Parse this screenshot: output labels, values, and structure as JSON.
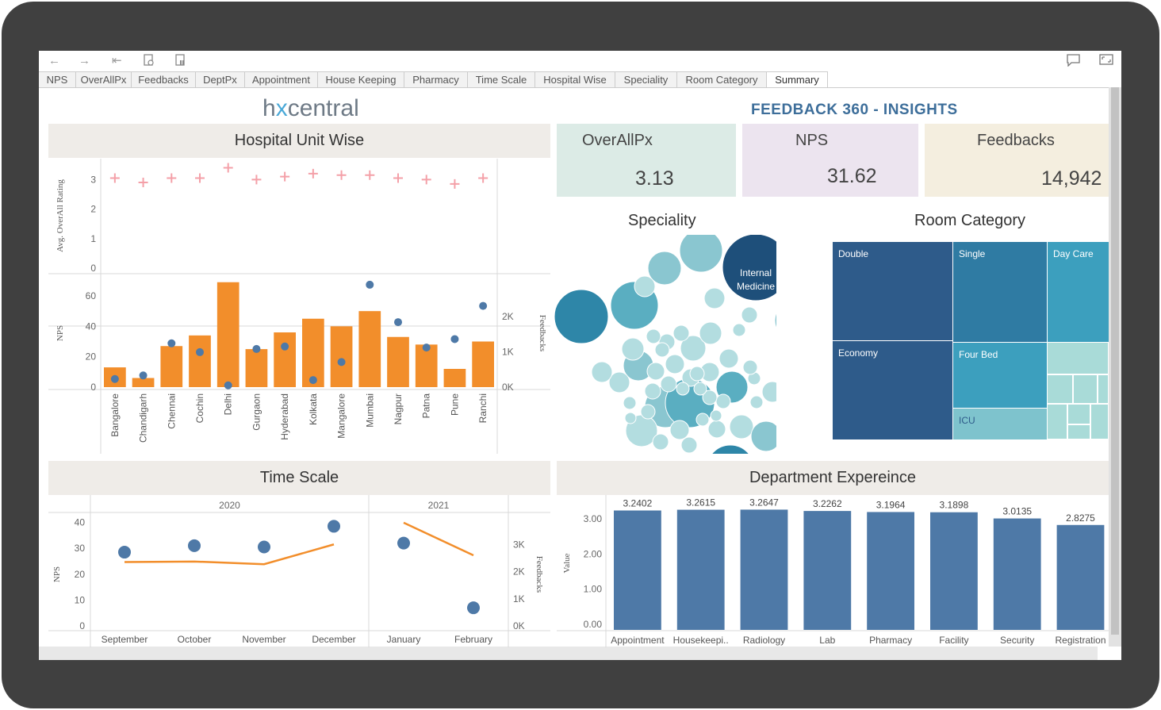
{
  "toolbar": {
    "back_icon": "back-arrow-icon",
    "forward_icon": "forward-arrow-icon",
    "first_icon": "skip-first-icon",
    "refresh_icon": "refresh-icon",
    "pause_icon": "pause-icon",
    "comment_icon": "comment-icon",
    "fullscreen_icon": "fullscreen-icon"
  },
  "tabs": [
    {
      "label": "NPS"
    },
    {
      "label": "OverAllPx"
    },
    {
      "label": "Feedbacks"
    },
    {
      "label": "DeptPx"
    },
    {
      "label": "Appointment"
    },
    {
      "label": "House Keeping"
    },
    {
      "label": "Pharmacy"
    },
    {
      "label": "Time Scale"
    },
    {
      "label": "Hospital Wise"
    },
    {
      "label": "Speciality"
    },
    {
      "label": "Room Category"
    },
    {
      "label": "Summary"
    }
  ],
  "active_tab": "Summary",
  "logo": {
    "part1": "h",
    "part2": "x",
    "part3": "central"
  },
  "dashboard_title": "FEEDBACK 360 - INSIGHTS",
  "kpis": [
    {
      "label": "OverAllPx",
      "value": "3.13",
      "color": "#dcebe6"
    },
    {
      "label": "NPS",
      "value": "31.62",
      "color": "#ece4ef"
    },
    {
      "label": "Feedbacks",
      "value": "14,942",
      "color": "#f4eedf"
    }
  ],
  "panels": {
    "hospital_unit": "Hospital Unit Wise",
    "time_scale": "Time Scale",
    "department": "Department Expereince",
    "speciality": "Speciality",
    "room_category": "Room Category"
  },
  "chart_data": [
    {
      "type": "bar",
      "name_printed": "Hospital Unit Wise",
      "categories": [
        "Bangalore",
        "Chandigarh",
        "Chennai",
        "Cochin",
        "Delhi",
        "Gurgaon",
        "Hyderabad",
        "Kolkata",
        "Mangalore",
        "Mumbai",
        "Nagpur",
        "Patna",
        "Pune",
        "Ranchi"
      ],
      "avg_rating_label": "Avg. OverAll Rating",
      "avg_rating": [
        3.05,
        2.9,
        3.05,
        3.05,
        3.4,
        3.0,
        3.1,
        3.2,
        3.15,
        3.15,
        3.05,
        3.0,
        2.85,
        3.05
      ],
      "avg_rating_ticks": [
        "0",
        "1",
        "2",
        "3"
      ],
      "avg_rating_ylim": [
        0,
        3.6
      ],
      "nps_label": "NPS",
      "nps": [
        13,
        6,
        27,
        34,
        69,
        25,
        36,
        45,
        40,
        50,
        33,
        28,
        12,
        30
      ],
      "nps_ticks": [
        "0",
        "20",
        "40",
        "60"
      ],
      "nps_ylim": [
        0,
        72
      ],
      "feedbacks_label": "Feedbacks",
      "feedbacks": [
        230,
        330,
        1240,
        990,
        50,
        1080,
        1150,
        200,
        710,
        2900,
        1840,
        1120,
        1360,
        2300
      ],
      "feedbacks_ticks": [
        "0K",
        "1K",
        "2K"
      ],
      "feedbacks_ylim": [
        0,
        3100
      ],
      "bar_color": "#f28e2b",
      "point_color": "#4e79a7",
      "cross_color": "#f4a0a8"
    },
    {
      "type": "line",
      "name_printed": "Time Scale",
      "years": [
        "2020",
        "2021"
      ],
      "categories": [
        "September",
        "October",
        "November",
        "December",
        "January",
        "February"
      ],
      "nps_label": "NPS",
      "nps": [
        28.5,
        31,
        30.5,
        38.5,
        32,
        7
      ],
      "nps_ticks": [
        "0",
        "10",
        "20",
        "30",
        "40"
      ],
      "nps_ylim": [
        0,
        42
      ],
      "feedbacks_label": "Feedbacks",
      "feedbacks": [
        2350,
        2370,
        2270,
        3000,
        3800,
        2600
      ],
      "feedbacks_ticks": [
        "0K",
        "1K",
        "2K",
        "3K"
      ],
      "feedbacks_ylim": [
        0,
        4000
      ],
      "line_color": "#f28e2b",
      "point_color": "#4e79a7"
    },
    {
      "type": "bar",
      "name_printed": "Department Expereince",
      "categories": [
        "Appointment",
        "Housekeepi..",
        "Radiology",
        "Lab",
        "Pharmacy",
        "Facility",
        "Security",
        "Registration"
      ],
      "values": [
        3.2402,
        3.2615,
        3.2647,
        3.2262,
        3.1964,
        3.1898,
        3.0135,
        2.8275
      ],
      "value_labels": [
        "3.2402",
        "3.2615",
        "3.2647",
        "3.2262",
        "3.1964",
        "3.1898",
        "3.0135",
        "2.8275"
      ],
      "ylabel": "Value",
      "yticks": [
        "0.00",
        "1.00",
        "2.00",
        "3.00"
      ],
      "ylim": [
        0,
        3.5
      ],
      "bar_color": "#4e79a7"
    }
  ],
  "speciality": {
    "highlight_label_1": "Internal",
    "highlight_label_2": "Medicine",
    "colors": [
      "#2e86a8",
      "#5aaec1",
      "#8ac6d0",
      "#b3dde0",
      "#1e4f7a"
    ]
  },
  "room_category": {
    "cells": [
      {
        "label": "Double",
        "color": "#2e5b8a"
      },
      {
        "label": "Single",
        "color": "#2f7ba3"
      },
      {
        "label": "Day Care",
        "color": "#3c9fbe"
      },
      {
        "label": "Economy",
        "color": "#2e5b8a"
      },
      {
        "label": "Four Bed",
        "color": "#3c9fbe"
      },
      {
        "label": "ICU",
        "color": "#7ec3cd"
      }
    ],
    "minor_color": "#a9dbd8"
  }
}
